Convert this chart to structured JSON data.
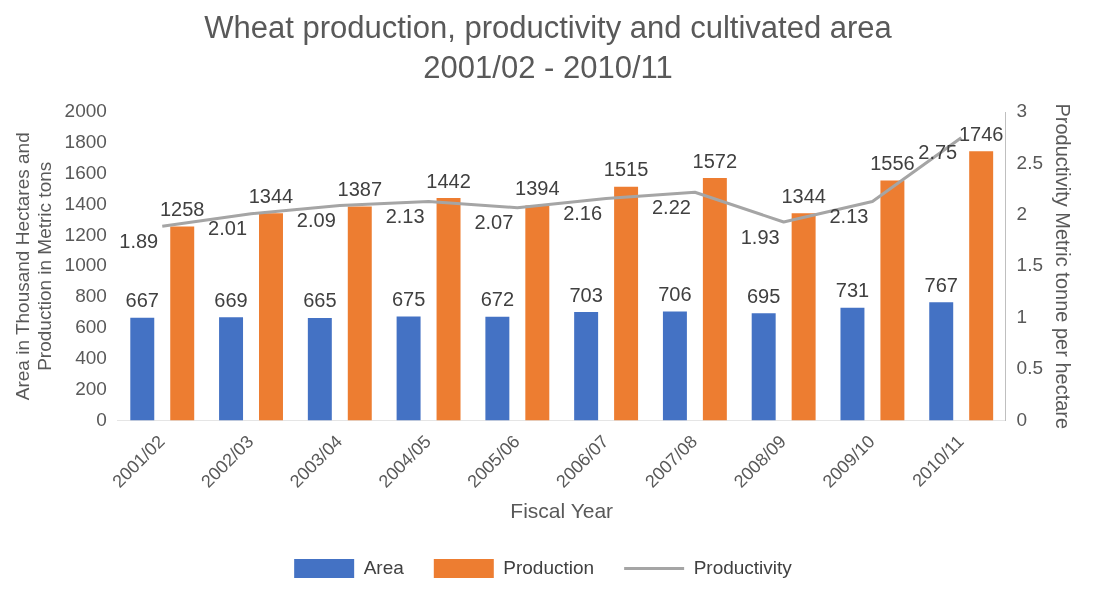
{
  "chart_data": {
    "type": "bar",
    "title": "Wheat production, productivity and cultivated area 2001/02 - 2010/11",
    "xlabel": "Fiscal Year",
    "ylabel": "Area in Thousand Hectares and Production in Metric tons",
    "y2label": "Productivity Metric tonne per hectare",
    "categories": [
      "2001/02",
      "2002/03",
      "2003/04",
      "2004/05",
      "2005/06",
      "2006/07",
      "2007/08",
      "2008/09",
      "2009/10",
      "2010/11"
    ],
    "series": [
      {
        "name": "Area",
        "color": "#4472c4",
        "values": [
          667,
          669,
          665,
          675,
          672,
          703,
          706,
          695,
          731,
          767
        ]
      },
      {
        "name": "Production",
        "color": "#ed7d31",
        "values": [
          1258,
          1344,
          1387,
          1442,
          1394,
          1515,
          1572,
          1344,
          1556,
          1746
        ]
      },
      {
        "name": "Productivity",
        "type": "line",
        "axis": "y2",
        "color": "#a5a5a5",
        "values": [
          1.89,
          2.01,
          2.09,
          2.13,
          2.07,
          2.16,
          2.22,
          1.93,
          2.13,
          2.75
        ]
      }
    ],
    "ylim": [
      0,
      2000
    ],
    "yticks": [
      0,
      200,
      400,
      600,
      800,
      1000,
      1200,
      1400,
      1600,
      1800,
      2000
    ],
    "y2lim": [
      0,
      3
    ],
    "y2ticks": [
      0,
      0.5,
      1,
      1.5,
      2,
      2.5,
      3
    ],
    "data_labels": true,
    "grid": false,
    "legend": "bottom",
    "marker": "none"
  }
}
